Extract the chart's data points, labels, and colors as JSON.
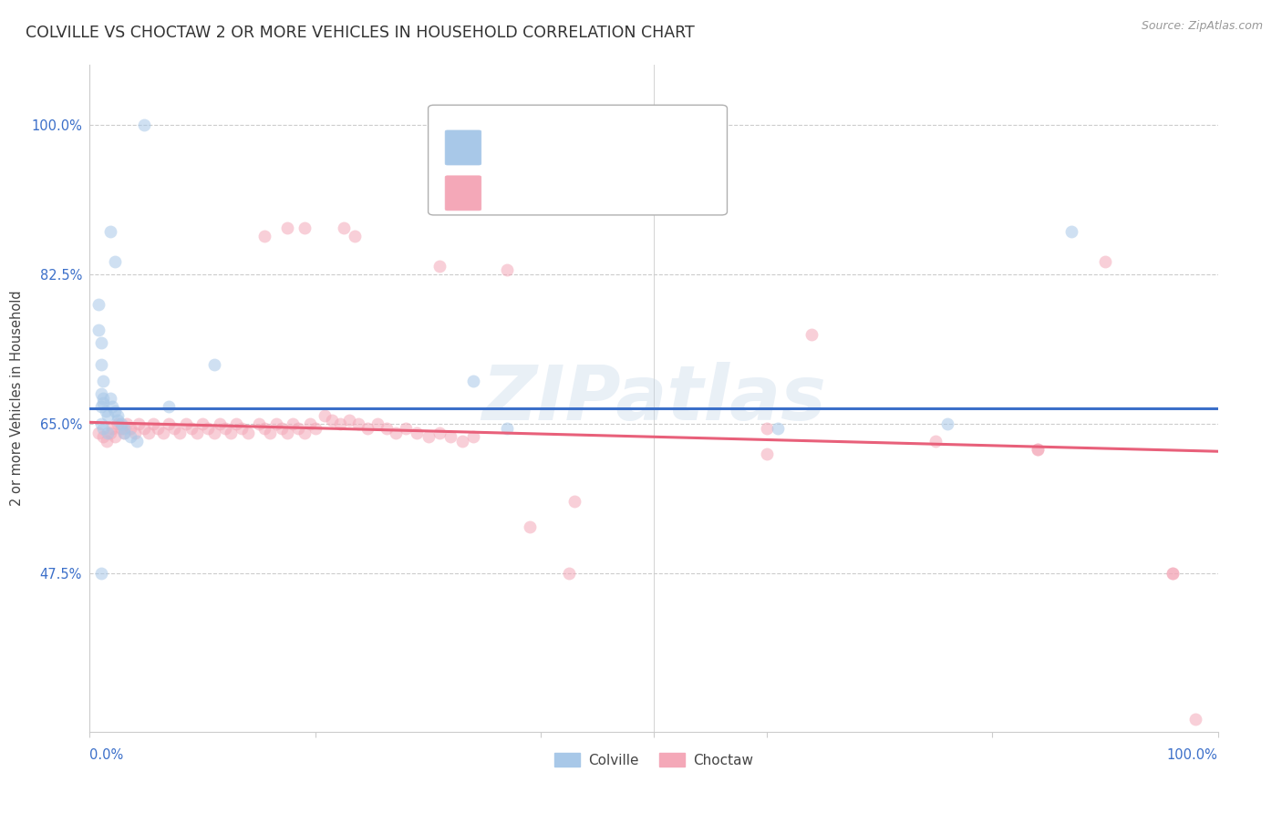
{
  "title": "COLVILLE VS CHOCTAW 2 OR MORE VEHICLES IN HOUSEHOLD CORRELATION CHART",
  "source": "Source: ZipAtlas.com",
  "ylabel": "2 or more Vehicles in Household",
  "ytick_vals": [
    0.475,
    0.65,
    0.825,
    1.0
  ],
  "ytick_labels": [
    "47.5%",
    "65.0%",
    "82.5%",
    "100.0%"
  ],
  "xtick_left_label": "0.0%",
  "xtick_right_label": "100.0%",
  "xlim": [
    0.0,
    1.0
  ],
  "ylim": [
    0.29,
    1.07
  ],
  "colville_scatter_color": "#a8c8e8",
  "choctaw_scatter_color": "#f4a8b8",
  "colville_line_color": "#3b6fc9",
  "choctaw_line_color": "#e8607a",
  "colville_x": [
    0.048,
    0.018,
    0.022,
    0.008,
    0.008,
    0.01,
    0.01,
    0.012,
    0.01,
    0.012,
    0.012,
    0.01,
    0.014,
    0.016,
    0.01,
    0.012,
    0.016,
    0.018,
    0.02,
    0.022,
    0.025,
    0.025,
    0.028,
    0.03,
    0.03,
    0.036,
    0.042,
    0.11,
    0.07,
    0.34,
    0.37,
    0.61,
    0.76,
    0.87,
    0.01
  ],
  "colville_y": [
    1.0,
    0.875,
    0.84,
    0.79,
    0.76,
    0.745,
    0.72,
    0.7,
    0.685,
    0.68,
    0.675,
    0.67,
    0.665,
    0.66,
    0.65,
    0.645,
    0.64,
    0.68,
    0.67,
    0.665,
    0.66,
    0.655,
    0.65,
    0.645,
    0.64,
    0.635,
    0.63,
    0.72,
    0.67,
    0.7,
    0.645,
    0.645,
    0.65,
    0.875,
    0.475
  ],
  "choctaw_x": [
    0.008,
    0.012,
    0.015,
    0.018,
    0.02,
    0.022,
    0.025,
    0.028,
    0.03,
    0.033,
    0.036,
    0.04,
    0.043,
    0.048,
    0.052,
    0.056,
    0.06,
    0.065,
    0.07,
    0.075,
    0.08,
    0.085,
    0.09,
    0.095,
    0.1,
    0.105,
    0.11,
    0.115,
    0.12,
    0.125,
    0.13,
    0.135,
    0.14,
    0.15,
    0.155,
    0.16,
    0.165,
    0.17,
    0.175,
    0.18,
    0.185,
    0.19,
    0.195,
    0.2,
    0.208,
    0.215,
    0.222,
    0.23,
    0.238,
    0.246,
    0.255,
    0.263,
    0.271,
    0.28,
    0.29,
    0.3,
    0.31,
    0.32,
    0.33,
    0.34,
    0.155,
    0.19,
    0.235,
    0.31,
    0.39,
    0.43,
    0.6,
    0.64,
    0.75,
    0.84,
    0.9,
    0.96,
    0.175,
    0.225,
    0.37,
    0.425,
    0.6,
    0.84,
    0.96,
    0.98
  ],
  "choctaw_y": [
    0.64,
    0.635,
    0.63,
    0.64,
    0.645,
    0.635,
    0.65,
    0.645,
    0.64,
    0.65,
    0.645,
    0.64,
    0.65,
    0.645,
    0.64,
    0.65,
    0.645,
    0.64,
    0.65,
    0.645,
    0.64,
    0.65,
    0.645,
    0.64,
    0.65,
    0.645,
    0.64,
    0.65,
    0.645,
    0.64,
    0.65,
    0.645,
    0.64,
    0.65,
    0.645,
    0.64,
    0.65,
    0.645,
    0.64,
    0.65,
    0.645,
    0.64,
    0.65,
    0.645,
    0.66,
    0.655,
    0.65,
    0.655,
    0.65,
    0.645,
    0.65,
    0.645,
    0.64,
    0.645,
    0.64,
    0.635,
    0.64,
    0.635,
    0.63,
    0.635,
    0.87,
    0.88,
    0.87,
    0.835,
    0.53,
    0.56,
    0.645,
    0.755,
    0.63,
    0.62,
    0.84,
    0.475,
    0.88,
    0.88,
    0.83,
    0.475,
    0.615,
    0.62,
    0.475,
    0.305
  ],
  "colville_trend_x": [
    0.0,
    1.0
  ],
  "colville_trend_y": [
    0.668,
    0.668
  ],
  "choctaw_trend_x": [
    0.0,
    1.0
  ],
  "choctaw_trend_y": [
    0.652,
    0.618
  ],
  "marker_size": 100,
  "marker_alpha": 0.55,
  "trend_linewidth": 2.2,
  "grid_color": "#cccccc",
  "grid_linestyle": "--",
  "grid_linewidth": 0.8,
  "title_fontsize": 12.5,
  "ylabel_fontsize": 10.5,
  "tick_fontsize": 10.5,
  "source_fontsize": 9,
  "legend_fontsize": 11,
  "watermark_text": "ZIPatlas",
  "watermark_color": "#c0d4e8",
  "watermark_alpha": 0.35,
  "watermark_fontsize": 60,
  "background_color": "#ffffff"
}
